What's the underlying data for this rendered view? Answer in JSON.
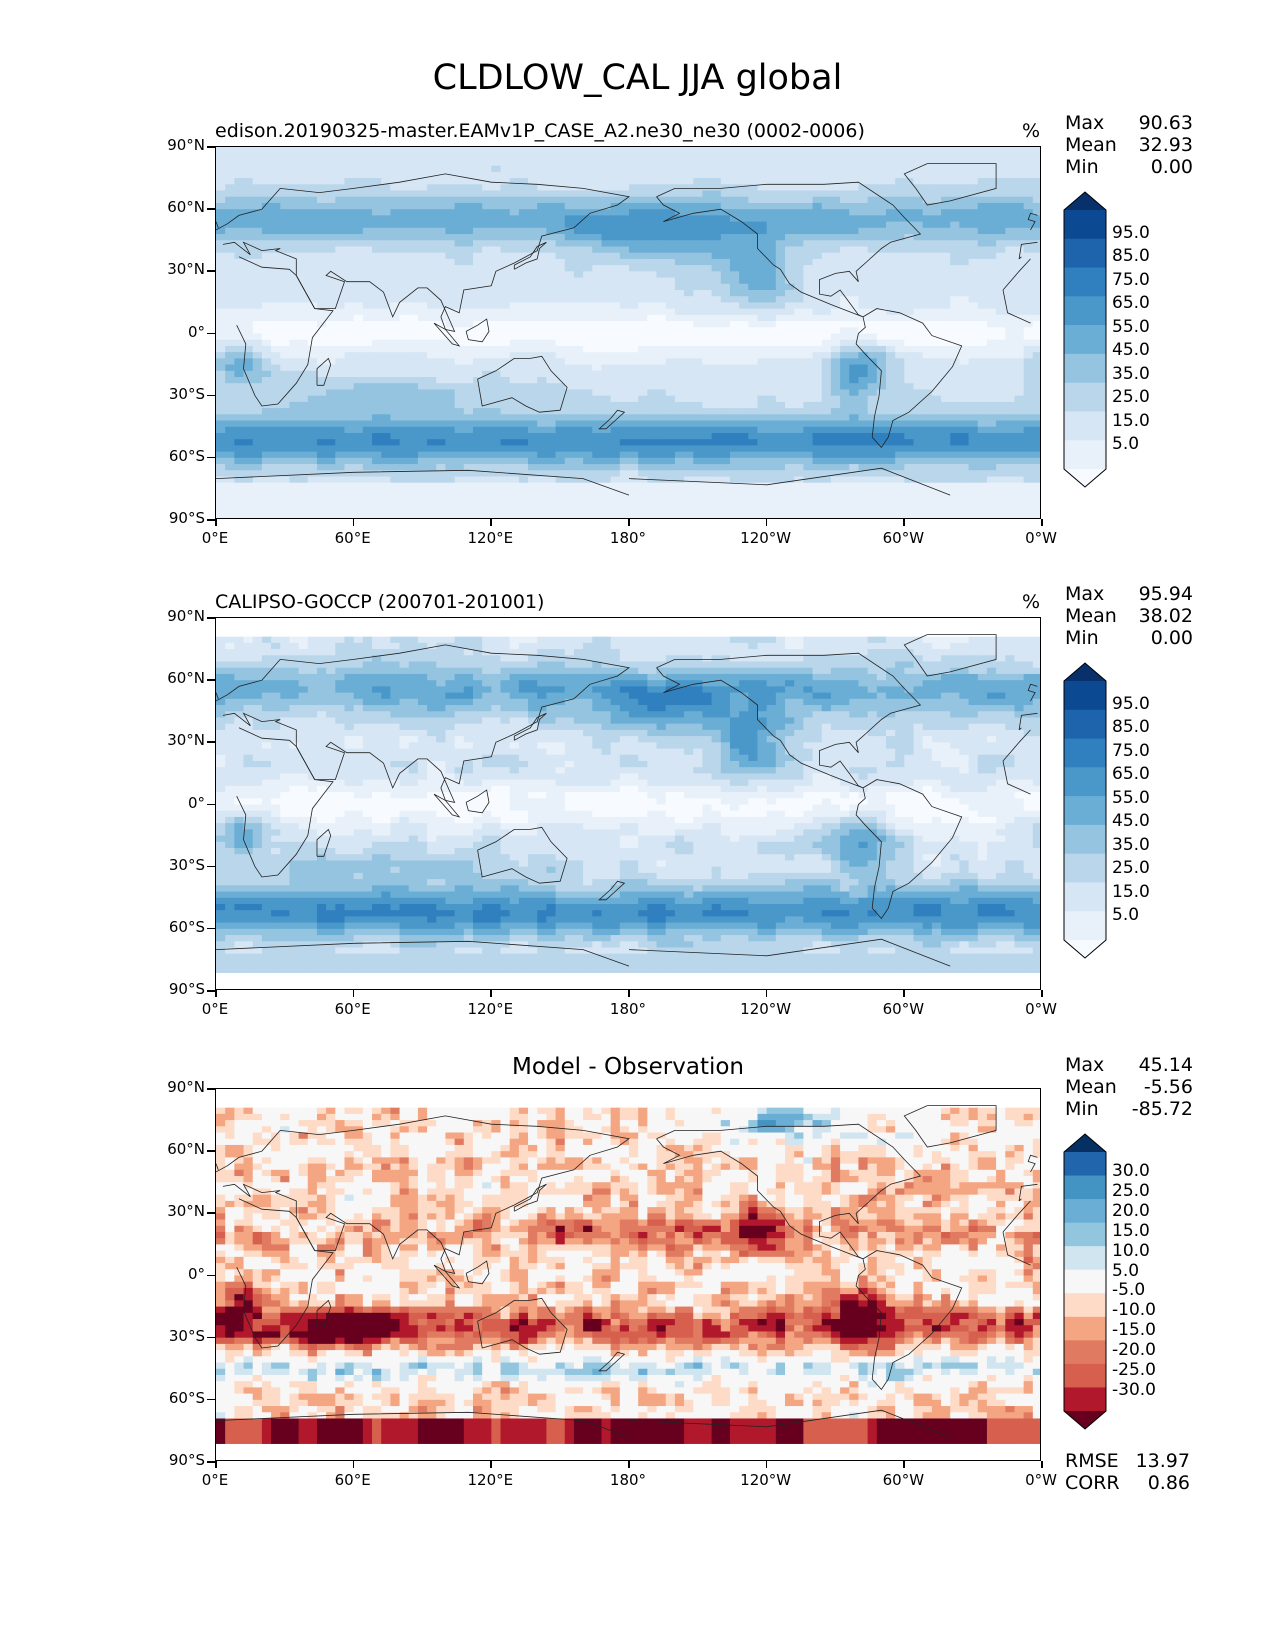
{
  "figure": {
    "suptitle": "CLDLOW_CAL JJA global",
    "x_ticks": [
      "0°E",
      "60°E",
      "120°E",
      "180°",
      "120°W",
      "60°W",
      "0°W"
    ],
    "y_ticks": [
      "90°N",
      "60°N",
      "30°N",
      "0°",
      "30°S",
      "60°S",
      "90°S"
    ]
  },
  "panels": [
    {
      "title": "edison.20190325-master.EAMv1P_CASE_A2.ne30_ne30 (0002-0006)",
      "title_position": "left",
      "units": "%",
      "stats": {
        "max_label": "Max",
        "max": "90.63",
        "mean_label": "Mean",
        "mean": "32.93",
        "min_label": "Min",
        "min": "0.00"
      },
      "colorbar": {
        "labels": [
          "95.0",
          "85.0",
          "75.0",
          "65.0",
          "55.0",
          "45.0",
          "35.0",
          "25.0",
          "15.0",
          "5.0"
        ],
        "colors": [
          "#08306b",
          "#0b4a92",
          "#1d64ad",
          "#3080c0",
          "#4a98c9",
          "#6aaed6",
          "#94c4df",
          "#bad6eb",
          "#d6e6f4",
          "#e8f1fa",
          "#f7fbff"
        ]
      }
    },
    {
      "title": "CALIPSO-GOCCP (200701-201001)",
      "title_position": "left",
      "units": "%",
      "stats": {
        "max_label": "Max",
        "max": "95.94",
        "mean_label": "Mean",
        "mean": "38.02",
        "min_label": "Min",
        "min": "0.00"
      },
      "colorbar": {
        "labels": [
          "95.0",
          "85.0",
          "75.0",
          "65.0",
          "55.0",
          "45.0",
          "35.0",
          "25.0",
          "15.0",
          "5.0"
        ],
        "colors": [
          "#08306b",
          "#0b4a92",
          "#1d64ad",
          "#3080c0",
          "#4a98c9",
          "#6aaed6",
          "#94c4df",
          "#bad6eb",
          "#d6e6f4",
          "#e8f1fa",
          "#f7fbff"
        ]
      }
    },
    {
      "title": "Model - Observation",
      "title_position": "center",
      "units": "",
      "stats": {
        "max_label": "Max",
        "max": "45.14",
        "mean_label": "Mean",
        "mean": "-5.56",
        "min_label": "Min",
        "min": "-85.72"
      },
      "colorbar": {
        "labels": [
          "30.0",
          "25.0",
          "20.0",
          "15.0",
          "10.0",
          "5.0",
          "-5.0",
          "-10.0",
          "-15.0",
          "-20.0",
          "-25.0",
          "-30.0"
        ],
        "colors": [
          "#053061",
          "#2166ac",
          "#4393c3",
          "#6aaed6",
          "#92c5de",
          "#d1e5f0",
          "#f7f7f7",
          "#fddbc7",
          "#f4a582",
          "#e07b61",
          "#d6604d",
          "#b2182b",
          "#67001f"
        ]
      },
      "footer": {
        "rmse_label": "RMSE",
        "rmse": "13.97",
        "corr_label": "CORR",
        "corr": "0.86"
      }
    }
  ]
}
